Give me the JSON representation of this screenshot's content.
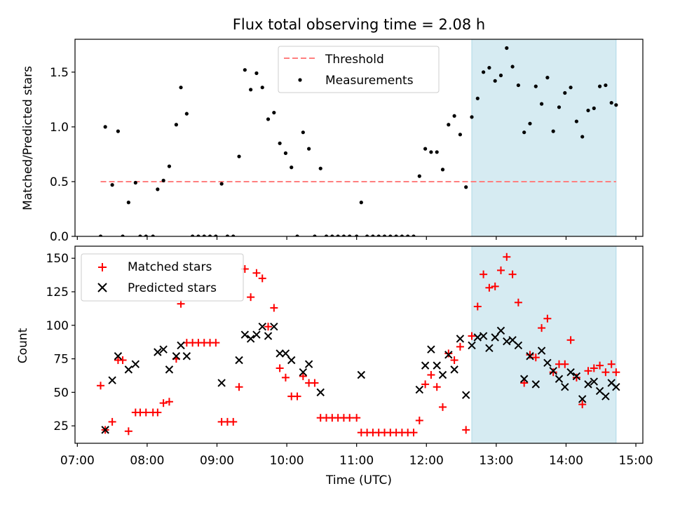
{
  "title": "Flux total observing time = 2.08 h",
  "chart_data": [
    {
      "type": "scatter",
      "ylabel": "Matched/Predicted stars",
      "xlim": [
        "06:58",
        "15:06"
      ],
      "ylim": [
        0,
        1.8
      ],
      "y_ticks": [
        0.0,
        0.5,
        1.0,
        1.5
      ],
      "y_tick_labels": [
        "0.0",
        "0.5",
        "1.0",
        "1.5"
      ],
      "legend_position": "top-center",
      "legend": {
        "threshold": "Threshold",
        "measurements": "Measurements"
      },
      "threshold": {
        "value": 0.5,
        "x_start": "07:20",
        "x_end": "14:43",
        "color": "#ff7f7f"
      },
      "highlight_span": {
        "start": "12:39",
        "end": "14:43",
        "color": "#add8e6"
      },
      "points": [
        [
          "07:20",
          0.0
        ],
        [
          "07:24",
          1.0
        ],
        [
          "07:30",
          0.47
        ],
        [
          "07:35",
          0.96
        ],
        [
          "07:39",
          0.0
        ],
        [
          "07:44",
          0.31
        ],
        [
          "07:50",
          0.49
        ],
        [
          "07:54",
          0.0
        ],
        [
          "07:59",
          0.0
        ],
        [
          "08:05",
          0.0
        ],
        [
          "08:09",
          0.43
        ],
        [
          "08:14",
          0.51
        ],
        [
          "08:19",
          0.64
        ],
        [
          "08:25",
          1.02
        ],
        [
          "08:29",
          1.36
        ],
        [
          "08:34",
          1.12
        ],
        [
          "08:39",
          0.0
        ],
        [
          "08:44",
          0.0
        ],
        [
          "08:49",
          0.0
        ],
        [
          "08:54",
          0.0
        ],
        [
          "08:59",
          0.0
        ],
        [
          "09:04",
          0.48
        ],
        [
          "09:09",
          0.0
        ],
        [
          "09:14",
          0.0
        ],
        [
          "09:19",
          0.73
        ],
        [
          "09:24",
          1.52
        ],
        [
          "09:29",
          1.34
        ],
        [
          "09:34",
          1.49
        ],
        [
          "09:39",
          1.36
        ],
        [
          "09:44",
          1.07
        ],
        [
          "09:49",
          1.13
        ],
        [
          "09:54",
          0.85
        ],
        [
          "09:59",
          0.76
        ],
        [
          "10:04",
          0.63
        ],
        [
          "10:09",
          0.0
        ],
        [
          "10:14",
          0.95
        ],
        [
          "10:19",
          0.8
        ],
        [
          "10:24",
          0.0
        ],
        [
          "10:29",
          0.62
        ],
        [
          "10:34",
          0.0
        ],
        [
          "10:39",
          0.0
        ],
        [
          "10:44",
          0.0
        ],
        [
          "10:49",
          0.0
        ],
        [
          "10:54",
          0.0
        ],
        [
          "11:00",
          0.0
        ],
        [
          "11:04",
          0.31
        ],
        [
          "11:09",
          0.0
        ],
        [
          "11:14",
          0.0
        ],
        [
          "11:19",
          0.0
        ],
        [
          "11:24",
          0.0
        ],
        [
          "11:29",
          0.0
        ],
        [
          "11:34",
          0.0
        ],
        [
          "11:39",
          0.0
        ],
        [
          "11:44",
          0.0
        ],
        [
          "11:49",
          0.0
        ],
        [
          "11:54",
          0.55
        ],
        [
          "11:59",
          0.8
        ],
        [
          "12:04",
          0.77
        ],
        [
          "12:09",
          0.77
        ],
        [
          "12:14",
          0.61
        ],
        [
          "12:19",
          1.02
        ],
        [
          "12:24",
          1.1
        ],
        [
          "12:29",
          0.93
        ],
        [
          "12:34",
          0.45
        ],
        [
          "12:39",
          1.09
        ],
        [
          "12:44",
          1.26
        ],
        [
          "12:49",
          1.5
        ],
        [
          "12:54",
          1.54
        ],
        [
          "12:59",
          1.42
        ],
        [
          "13:04",
          1.47
        ],
        [
          "13:09",
          1.72
        ],
        [
          "13:14",
          1.55
        ],
        [
          "13:19",
          1.38
        ],
        [
          "13:24",
          0.95
        ],
        [
          "13:29",
          1.03
        ],
        [
          "13:34",
          1.37
        ],
        [
          "13:39",
          1.21
        ],
        [
          "13:44",
          1.45
        ],
        [
          "13:49",
          0.96
        ],
        [
          "13:54",
          1.18
        ],
        [
          "13:59",
          1.31
        ],
        [
          "14:04",
          1.36
        ],
        [
          "14:09",
          1.05
        ],
        [
          "14:14",
          0.91
        ],
        [
          "14:19",
          1.15
        ],
        [
          "14:24",
          1.17
        ],
        [
          "14:29",
          1.37
        ],
        [
          "14:34",
          1.38
        ],
        [
          "14:39",
          1.22
        ],
        [
          "14:43",
          1.2
        ]
      ]
    },
    {
      "type": "scatter",
      "xlabel": "Time (UTC)",
      "ylabel": "Count",
      "xlim": [
        "06:58",
        "15:06"
      ],
      "ylim": [
        12,
        159
      ],
      "y_ticks": [
        25,
        50,
        75,
        100,
        125,
        150
      ],
      "y_tick_labels": [
        "25",
        "50",
        "75",
        "100",
        "125",
        "150"
      ],
      "x_ticks": [
        "07:00",
        "08:00",
        "09:00",
        "10:00",
        "11:00",
        "12:00",
        "13:00",
        "14:00",
        "15:00"
      ],
      "x_tick_labels": [
        "07:00",
        "08:00",
        "09:00",
        "10:00",
        "11:00",
        "12:00",
        "13:00",
        "14:00",
        "15:00"
      ],
      "legend_position": "upper-left",
      "highlight_span": {
        "start": "12:39",
        "end": "14:43",
        "color": "#add8e6"
      },
      "series": [
        {
          "name": "Matched stars",
          "marker": "plus",
          "color": "#ff0000",
          "points": [
            [
              "07:20",
              55
            ],
            [
              "07:24",
              22
            ],
            [
              "07:30",
              28
            ],
            [
              "07:35",
              74
            ],
            [
              "07:39",
              74
            ],
            [
              "07:44",
              21
            ],
            [
              "07:50",
              35
            ],
            [
              "07:54",
              35
            ],
            [
              "07:59",
              35
            ],
            [
              "08:05",
              35
            ],
            [
              "08:09",
              35
            ],
            [
              "08:14",
              42
            ],
            [
              "08:19",
              43
            ],
            [
              "08:25",
              75
            ],
            [
              "08:29",
              116
            ],
            [
              "08:34",
              87
            ],
            [
              "08:39",
              87
            ],
            [
              "08:44",
              87
            ],
            [
              "08:49",
              87
            ],
            [
              "08:54",
              87
            ],
            [
              "08:59",
              87
            ],
            [
              "09:04",
              28
            ],
            [
              "09:09",
              28
            ],
            [
              "09:14",
              28
            ],
            [
              "09:19",
              54
            ],
            [
              "09:24",
              142
            ],
            [
              "09:29",
              121
            ],
            [
              "09:34",
              139
            ],
            [
              "09:39",
              135
            ],
            [
              "09:44",
              99
            ],
            [
              "09:49",
              113
            ],
            [
              "09:54",
              68
            ],
            [
              "09:59",
              61
            ],
            [
              "10:04",
              47
            ],
            [
              "10:09",
              47
            ],
            [
              "10:14",
              62
            ],
            [
              "10:19",
              57
            ],
            [
              "10:24",
              57
            ],
            [
              "10:29",
              31
            ],
            [
              "10:34",
              31
            ],
            [
              "10:39",
              31
            ],
            [
              "10:44",
              31
            ],
            [
              "10:49",
              31
            ],
            [
              "10:54",
              31
            ],
            [
              "11:00",
              31
            ],
            [
              "11:04",
              20
            ],
            [
              "11:09",
              20
            ],
            [
              "11:14",
              20
            ],
            [
              "11:19",
              20
            ],
            [
              "11:24",
              20
            ],
            [
              "11:29",
              20
            ],
            [
              "11:34",
              20
            ],
            [
              "11:39",
              20
            ],
            [
              "11:44",
              20
            ],
            [
              "11:49",
              20
            ],
            [
              "11:54",
              29
            ],
            [
              "11:59",
              56
            ],
            [
              "12:04",
              63
            ],
            [
              "12:09",
              54
            ],
            [
              "12:14",
              39
            ],
            [
              "12:19",
              79
            ],
            [
              "12:24",
              74
            ],
            [
              "12:29",
              84
            ],
            [
              "12:34",
              22
            ],
            [
              "12:39",
              92
            ],
            [
              "12:44",
              114
            ],
            [
              "12:49",
              138
            ],
            [
              "12:54",
              128
            ],
            [
              "12:59",
              129
            ],
            [
              "13:04",
              141
            ],
            [
              "13:09",
              151
            ],
            [
              "13:14",
              138
            ],
            [
              "13:19",
              117
            ],
            [
              "13:24",
              57
            ],
            [
              "13:29",
              78
            ],
            [
              "13:34",
              76
            ],
            [
              "13:39",
              98
            ],
            [
              "13:44",
              105
            ],
            [
              "13:49",
              65
            ],
            [
              "13:54",
              71
            ],
            [
              "13:59",
              71
            ],
            [
              "14:04",
              89
            ],
            [
              "14:09",
              61
            ],
            [
              "14:14",
              41
            ],
            [
              "14:19",
              66
            ],
            [
              "14:24",
              68
            ],
            [
              "14:29",
              70
            ],
            [
              "14:34",
              65
            ],
            [
              "14:39",
              71
            ],
            [
              "14:43",
              65
            ]
          ]
        },
        {
          "name": "Predicted stars",
          "marker": "x",
          "color": "#000000",
          "points": [
            [
              "07:24",
              22
            ],
            [
              "07:30",
              59
            ],
            [
              "07:35",
              77
            ],
            [
              "07:44",
              67
            ],
            [
              "07:50",
              71
            ],
            [
              "08:09",
              80
            ],
            [
              "08:14",
              82
            ],
            [
              "08:19",
              67
            ],
            [
              "08:25",
              77
            ],
            [
              "08:29",
              85
            ],
            [
              "08:34",
              77
            ],
            [
              "09:04",
              57
            ],
            [
              "09:19",
              74
            ],
            [
              "09:24",
              93
            ],
            [
              "09:29",
              90
            ],
            [
              "09:34",
              93
            ],
            [
              "09:39",
              99
            ],
            [
              "09:44",
              92
            ],
            [
              "09:49",
              99
            ],
            [
              "09:54",
              79
            ],
            [
              "09:59",
              79
            ],
            [
              "10:04",
              74
            ],
            [
              "10:14",
              65
            ],
            [
              "10:19",
              71
            ],
            [
              "10:29",
              50
            ],
            [
              "11:04",
              63
            ],
            [
              "11:54",
              52
            ],
            [
              "11:59",
              70
            ],
            [
              "12:04",
              82
            ],
            [
              "12:09",
              70
            ],
            [
              "12:14",
              63
            ],
            [
              "12:19",
              78
            ],
            [
              "12:24",
              67
            ],
            [
              "12:29",
              90
            ],
            [
              "12:34",
              48
            ],
            [
              "12:39",
              85
            ],
            [
              "12:44",
              91
            ],
            [
              "12:49",
              92
            ],
            [
              "12:54",
              83
            ],
            [
              "12:59",
              91
            ],
            [
              "13:04",
              96
            ],
            [
              "13:09",
              88
            ],
            [
              "13:14",
              89
            ],
            [
              "13:19",
              85
            ],
            [
              "13:24",
              60
            ],
            [
              "13:29",
              77
            ],
            [
              "13:34",
              56
            ],
            [
              "13:39",
              81
            ],
            [
              "13:44",
              72
            ],
            [
              "13:49",
              66
            ],
            [
              "13:54",
              60
            ],
            [
              "13:59",
              54
            ],
            [
              "14:04",
              65
            ],
            [
              "14:09",
              62
            ],
            [
              "14:14",
              45
            ],
            [
              "14:19",
              56
            ],
            [
              "14:24",
              58
            ],
            [
              "14:29",
              51
            ],
            [
              "14:34",
              47
            ],
            [
              "14:39",
              57
            ],
            [
              "14:43",
              54
            ]
          ]
        }
      ]
    }
  ]
}
